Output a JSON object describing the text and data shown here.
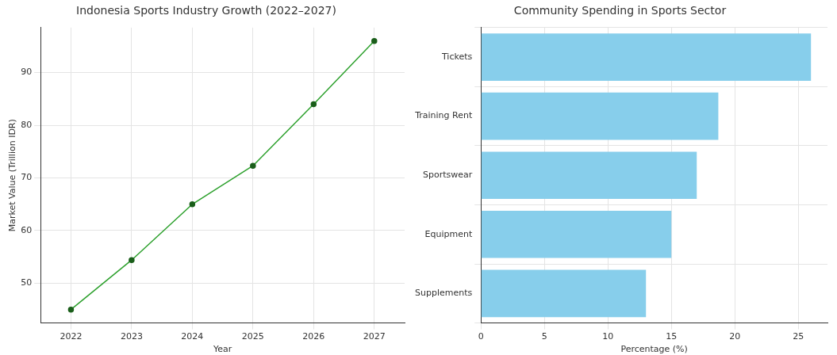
{
  "chart_data": [
    {
      "type": "line",
      "title": "Indonesia Sports Industry Growth (2022–2027)",
      "xlabel": "Year",
      "ylabel": "Market Value (Trillion IDR)",
      "categories": [
        "2022",
        "2023",
        "2024",
        "2025",
        "2026",
        "2027"
      ],
      "series": [
        {
          "color": "#2ca02c",
          "values": [
            45,
            54.4,
            65,
            72.3,
            84,
            96
          ]
        }
      ],
      "ylim": [
        42.45,
        98.55
      ],
      "yticks": [
        50,
        60,
        70,
        80,
        90
      ],
      "grid": true,
      "marker": "circle",
      "line_style": "solid",
      "legend": false
    },
    {
      "type": "bar",
      "orientation": "horizontal",
      "title": "Community Spending in Sports Sector",
      "xlabel": "Percentage (%)",
      "categories": [
        "Tickets",
        "Training Rent",
        "Sportswear",
        "Equipment",
        "Supplements"
      ],
      "values": [
        26,
        18.7,
        17,
        15,
        13
      ],
      "color": "#87ceeb",
      "xlim": [
        0,
        27.3
      ],
      "xticks": [
        0,
        5,
        10,
        15,
        20,
        25
      ],
      "grid": true,
      "legend": false
    }
  ]
}
